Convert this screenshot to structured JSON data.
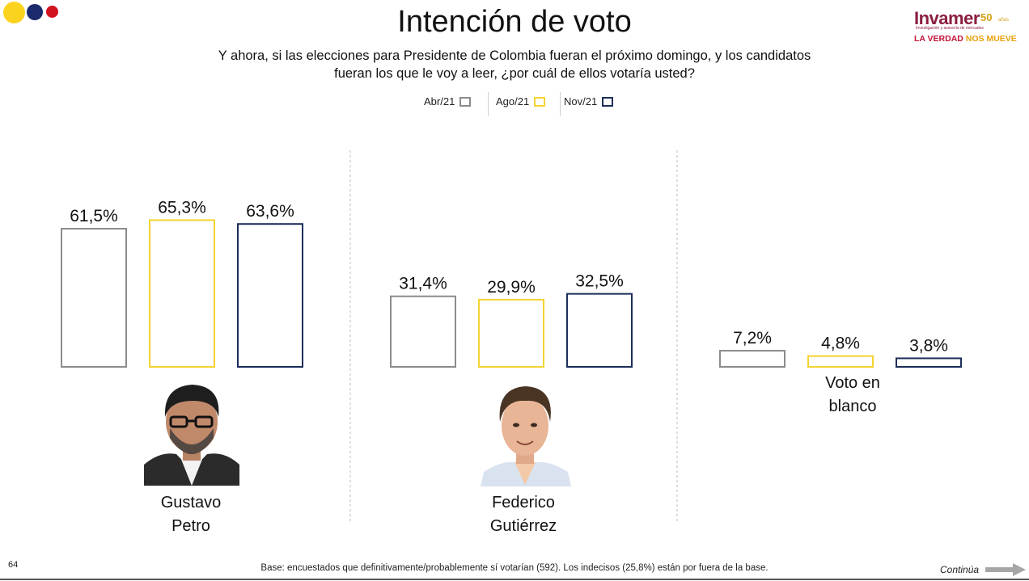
{
  "header": {
    "title": "Intención de voto",
    "question_line1": "Y ahora, si las elecciones para Presidente de Colombia fueran el próximo domingo, y los candidatos",
    "question_line2": "fueran los que le voy a leer, ¿por cuál de ellos votaría usted?"
  },
  "logo": {
    "word": "Invamer",
    "anniversary": "50",
    "years": "años",
    "subtitle": "Investigación y asesoría de mercados",
    "tagline_part1": "LA VERDAD",
    "tagline_part2": "NOS MUEVE"
  },
  "colors": {
    "abr": "#8c8c8c",
    "ago": "#f6d330",
    "nov": "#1c2e5a",
    "divider": "#bdbdbd"
  },
  "chart_data": {
    "type": "bar",
    "categories": [
      "Gustavo Petro",
      "Federico Gutiérrez",
      "Voto en blanco"
    ],
    "series": [
      {
        "name": "Abr/21",
        "values": [
          61.5,
          31.4,
          7.2
        ],
        "labels": [
          "61,5%",
          "31,4%",
          "7,2%"
        ]
      },
      {
        "name": "Ago/21",
        "values": [
          65.3,
          29.9,
          4.8
        ],
        "labels": [
          "65,3%",
          "29,9%",
          "4,8%"
        ]
      },
      {
        "name": "Nov/21",
        "values": [
          63.6,
          32.5,
          3.8
        ],
        "labels": [
          "63,6%",
          "32,5%",
          "3,8%"
        ]
      }
    ],
    "ylim": [
      0,
      100
    ],
    "grid": false,
    "legend": "top-center"
  },
  "candidates": [
    {
      "line1": "Gustavo",
      "line2": "Petro",
      "photo_icon": "gustavo-petro-photo"
    },
    {
      "line1": "Federico",
      "line2": "Gutiérrez",
      "photo_icon": "federico-gutierrez-photo"
    },
    {
      "line1": "Voto en",
      "line2": "blanco"
    }
  ],
  "footer": {
    "page_number": "64",
    "note": "Base: encuestados que definitivamente/probablemente sí votarían (592). Los indecisos (25,8%) están por fuera de la base.",
    "continue_label": "Continúa"
  }
}
